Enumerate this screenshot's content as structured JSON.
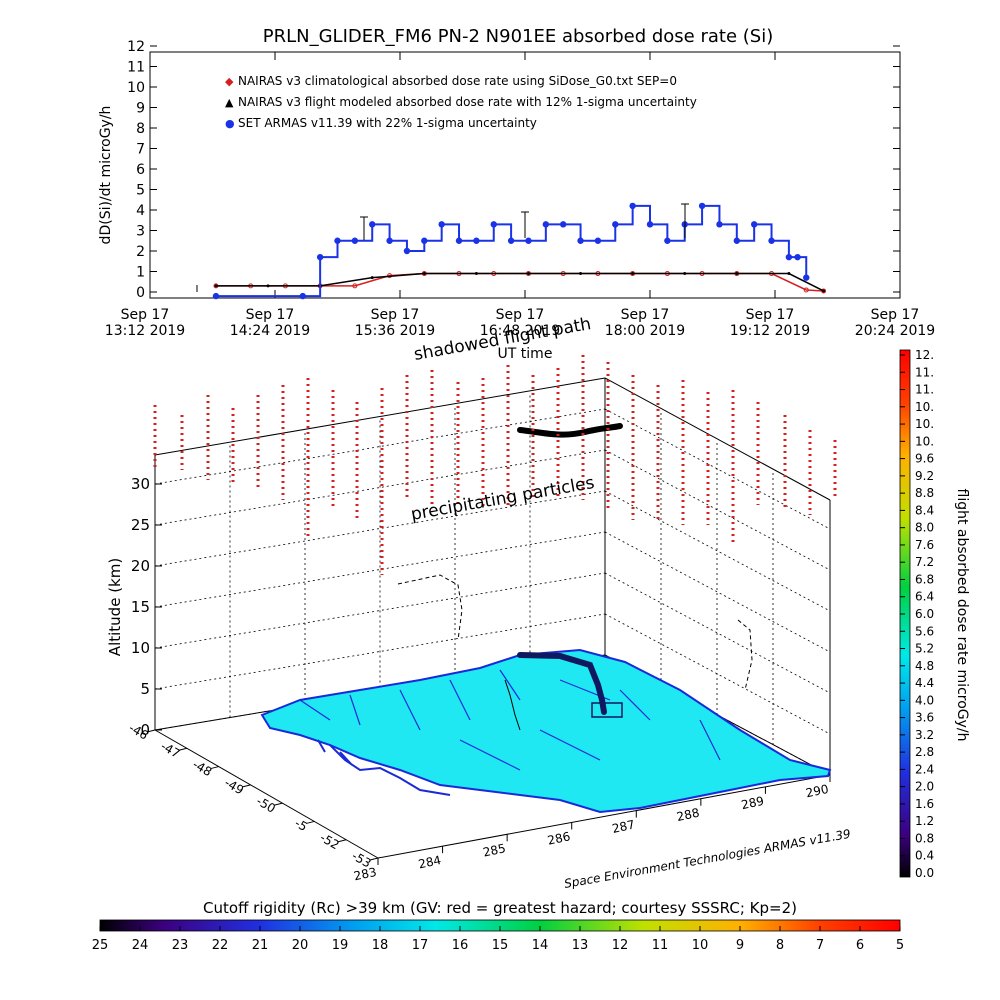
{
  "top_chart": {
    "title": "PRLN_GLIDER_FM6 PN-2 N901EE absorbed dose rate (Si)",
    "ylabel": "dD(Si)/dt microGy/h",
    "xlabel": "UT time",
    "legend": [
      "NAIRAS v3 climatological absorbed dose rate using SiDose_G0.txt SEP=0",
      "NAIRAS v3 flight modeled absorbed dose rate with 12% 1-sigma uncertainty",
      "SET ARMAS v11.39 with 22% 1-sigma uncertainty"
    ],
    "y_ticks": [
      "0",
      "1",
      "2",
      "3",
      "4",
      "5",
      "6",
      "7",
      "8",
      "9",
      "10",
      "11",
      "12"
    ],
    "x_ticks": [
      {
        "date": "Sep 17",
        "time": "13:12 2019"
      },
      {
        "date": "Sep 17",
        "time": "14:24 2019"
      },
      {
        "date": "Sep 17",
        "time": "15:36 2019"
      },
      {
        "date": "Sep 17",
        "time": "16:48 2019"
      },
      {
        "date": "Sep 17",
        "time": "18:00 2019"
      },
      {
        "date": "Sep 17",
        "time": "19:12 2019"
      },
      {
        "date": "Sep 17",
        "time": "20:24 2019"
      }
    ]
  },
  "chart_data": {
    "type": "scatter",
    "title": "PRLN_GLIDER_FM6 PN-2 N901EE absorbed dose rate (Si)",
    "xlabel": "UT time",
    "ylabel": "dD(Si)/dt microGy/h",
    "ylim": [
      0,
      12
    ],
    "xlim_minutes_utc": [
      792,
      1224
    ],
    "series": [
      {
        "name": "NAIRAS v3 climatological absorbed dose rate using SiDose_G0.txt SEP=0",
        "color": "#d42020",
        "x_minutes_utc": [
          830,
          850,
          870,
          890,
          910,
          930,
          950,
          970,
          990,
          1010,
          1030,
          1050,
          1070,
          1090,
          1110,
          1130,
          1150,
          1170,
          1180
        ],
        "values": [
          0.3,
          0.3,
          0.3,
          0.3,
          0.3,
          0.8,
          0.9,
          0.9,
          0.9,
          0.9,
          0.9,
          0.9,
          0.9,
          0.9,
          0.9,
          0.9,
          0.9,
          0.1,
          0.05
        ]
      },
      {
        "name": "NAIRAS v3 flight modeled absorbed dose rate with 12% 1-sigma uncertainty",
        "color": "#000000",
        "x_minutes_utc": [
          830,
          860,
          890,
          920,
          950,
          980,
          1010,
          1040,
          1070,
          1100,
          1130,
          1160,
          1180
        ],
        "values": [
          0.3,
          0.3,
          0.3,
          0.7,
          0.9,
          0.9,
          0.9,
          0.9,
          0.9,
          0.9,
          0.9,
          0.9,
          0.05
        ]
      },
      {
        "name": "SET ARMAS v11.39 with 22% 1-sigma uncertainty",
        "color": "#1a33e6",
        "x_minutes_utc": [
          830,
          880,
          890,
          900,
          910,
          920,
          930,
          940,
          950,
          960,
          970,
          980,
          990,
          1000,
          1010,
          1020,
          1030,
          1040,
          1050,
          1060,
          1070,
          1080,
          1090,
          1100,
          1110,
          1120,
          1130,
          1140,
          1150,
          1160,
          1165,
          1170
        ],
        "values": [
          -0.2,
          -0.2,
          1.7,
          2.5,
          2.5,
          3.3,
          2.5,
          2.0,
          2.5,
          3.3,
          2.5,
          2.5,
          3.3,
          2.5,
          2.5,
          3.3,
          3.3,
          2.5,
          2.5,
          3.3,
          4.2,
          3.3,
          2.5,
          3.3,
          4.2,
          3.3,
          2.5,
          3.3,
          2.5,
          1.7,
          1.7,
          0.7
        ]
      }
    ]
  },
  "scene": {
    "label_shadowed": "shadowed flight path",
    "label_precip": "precipitating particles",
    "zlabel": "Altitude (km)",
    "z_ticks": [
      "0",
      "5",
      "10",
      "15",
      "20",
      "25",
      "30"
    ],
    "lat_ticks": [
      "-46",
      "-47",
      "-48",
      "-49",
      "-50",
      "-5",
      "-52",
      "-53"
    ],
    "lon_ticks": [
      "283",
      "284",
      "285",
      "286",
      "287",
      "288",
      "289",
      "290"
    ],
    "credit": "Space Environment Technologies ARMAS v11.39",
    "colors": {
      "land": "#1fe8f2",
      "coast": "#1a2ad8",
      "track": "#101860",
      "precip": "#d62020"
    }
  },
  "colorbar_right": {
    "label": "flight absorbed dose rate microGy/h",
    "ticks": [
      "12.",
      "11.",
      "11.",
      "10.",
      "10.",
      "10.",
      "9.6",
      "9.2",
      "8.8",
      "8.4",
      "8.0",
      "7.6",
      "7.2",
      "6.8",
      "6.4",
      "6.0",
      "5.6",
      "5.2",
      "4.8",
      "4.4",
      "4.0",
      "3.6",
      "3.2",
      "2.8",
      "2.4",
      "2.0",
      "1.6",
      "1.2",
      "0.8",
      "0.4",
      "0.0"
    ]
  },
  "colorbar_bottom": {
    "title": "Cutoff rigidity (Rc) >39 km (GV: red = greatest hazard; courtesy SSSRC; Kp=2)",
    "ticks": [
      "25",
      "24",
      "23",
      "22",
      "21",
      "20",
      "19",
      "18",
      "17",
      "16",
      "15",
      "14",
      "13",
      "12",
      "11",
      "10",
      "9",
      "8",
      "7",
      "6",
      "5"
    ]
  }
}
